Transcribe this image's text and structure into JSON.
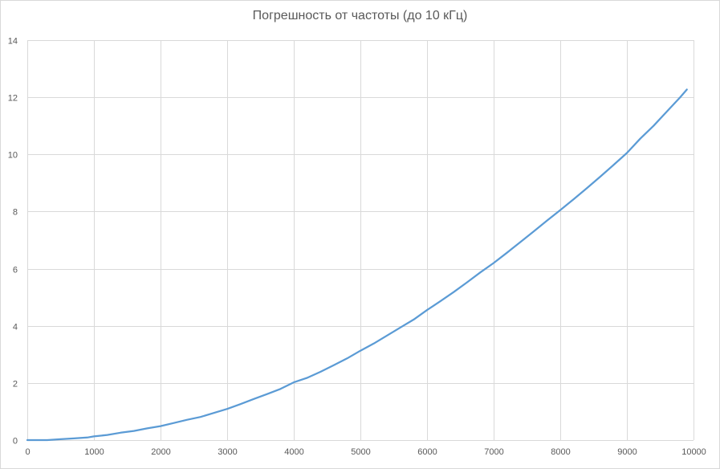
{
  "chart_data": {
    "type": "line",
    "title": "Погрешность от частоты (до 10 кГц)",
    "xlabel": "",
    "ylabel": "",
    "xlim": [
      0,
      10000
    ],
    "ylim": [
      0,
      14
    ],
    "x_ticks": [
      0,
      1000,
      2000,
      3000,
      4000,
      5000,
      6000,
      7000,
      8000,
      9000,
      10000
    ],
    "y_ticks": [
      0,
      2,
      4,
      6,
      8,
      10,
      12,
      14
    ],
    "x_tick_labels": [
      "0",
      "1000",
      "2000",
      "3000",
      "4000",
      "5000",
      "6000",
      "7000",
      "8000",
      "9000",
      "10000"
    ],
    "y_tick_labels": [
      "0",
      "2",
      "4",
      "6",
      "8",
      "10",
      "12",
      "14"
    ],
    "grid": true,
    "legend": "none",
    "series": [
      {
        "color": "#5b9bd5",
        "x": [
          0,
          300,
          500,
          700,
          900,
          1000,
          1200,
          1400,
          1600,
          1800,
          2000,
          2200,
          2400,
          2600,
          2800,
          3000,
          3200,
          3400,
          3600,
          3800,
          4000,
          4200,
          4400,
          4600,
          4800,
          5000,
          5200,
          5400,
          5600,
          5800,
          6000,
          6200,
          6400,
          6600,
          6800,
          7000,
          7200,
          7400,
          7600,
          7800,
          8000,
          8200,
          8400,
          8600,
          8800,
          9000,
          9200,
          9400,
          9600,
          9800,
          9900
        ],
        "y": [
          0,
          0,
          0.03,
          0.06,
          0.09,
          0.13,
          0.18,
          0.26,
          0.32,
          0.41,
          0.49,
          0.6,
          0.71,
          0.81,
          0.95,
          1.09,
          1.26,
          1.44,
          1.61,
          1.79,
          2.02,
          2.18,
          2.39,
          2.62,
          2.86,
          3.13,
          3.38,
          3.66,
          3.94,
          4.22,
          4.55,
          4.86,
          5.18,
          5.52,
          5.87,
          6.2,
          6.56,
          6.93,
          7.3,
          7.68,
          8.05,
          8.43,
          8.82,
          9.22,
          9.63,
          10.05,
          10.55,
          11.0,
          11.5,
          12.0,
          12.27
        ]
      }
    ]
  }
}
